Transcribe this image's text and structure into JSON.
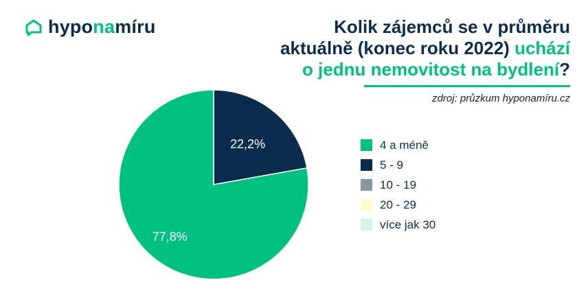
{
  "brand": {
    "logo_part1": "hypo",
    "logo_part2": "na",
    "logo_part3": "míru",
    "dark_color": "#0c2c4d",
    "accent_color": "#00c082"
  },
  "header": {
    "title_line1": "Kolik zájemců se v průměru",
    "title_line2_main": "aktuálně (konec roku 2022) ",
    "title_line2_accent": "uchází",
    "title_line3_accent": "o jednu nemovitost na bydlení",
    "title_line3_end": "?",
    "source": "zdroj: průzkum hyponamíru.cz"
  },
  "chart_data": {
    "type": "pie",
    "title": "Kolik zájemců se v průměru aktuálně (konec roku 2022) uchází o jednu nemovitost na bydlení?",
    "categories": [
      "4 a méně",
      "5 - 9",
      "10 - 19",
      "20 - 29",
      "více jak 30"
    ],
    "values": [
      77.8,
      22.2,
      0,
      0,
      0
    ],
    "value_labels": [
      "77,8%",
      "22,2%",
      "",
      "",
      ""
    ],
    "colors": [
      "#00c082",
      "#0c2c4d",
      "#8896a3",
      "#fff8c9",
      "#d3f4e8"
    ],
    "legend_position": "right"
  }
}
